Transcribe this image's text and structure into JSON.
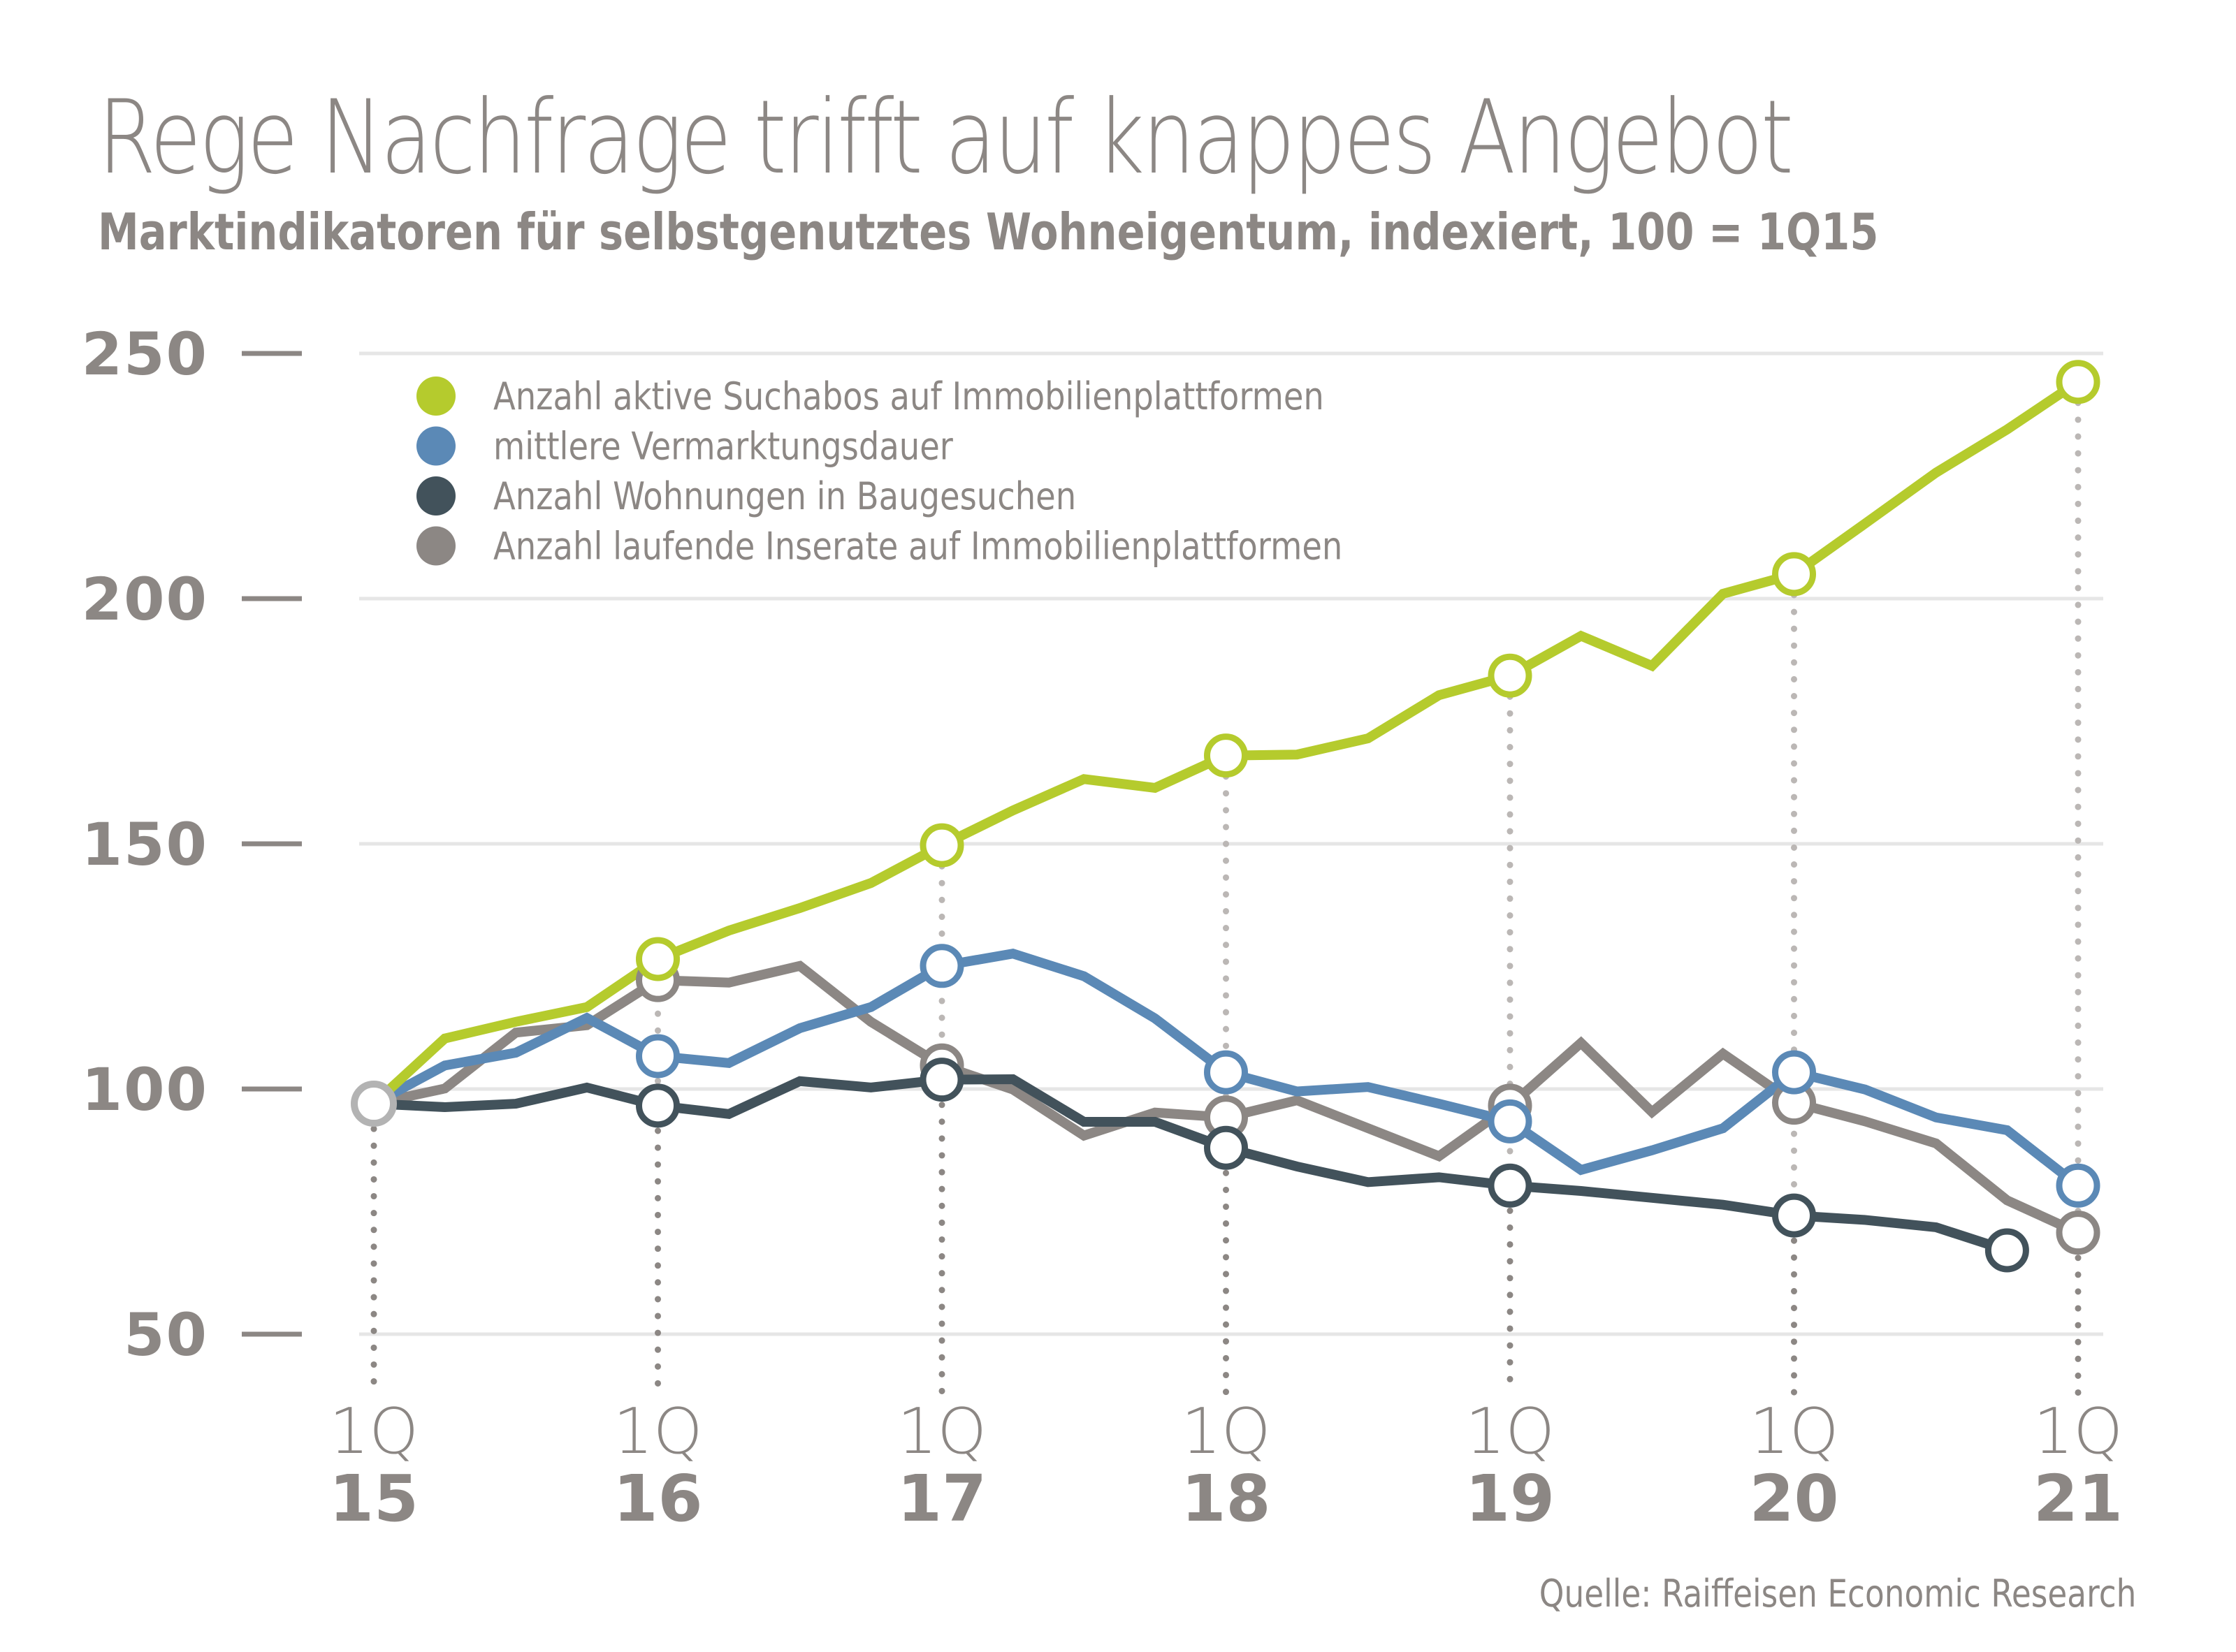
{
  "title": "Rege Nachfrage trifft auf knappes Angebot",
  "subtitle": "Marktindikatoren für selbstgenutztes Wohneigentum, indexiert, 100 = 1Q15",
  "source": "Quelle: Raiffeisen Economic Research",
  "colors": {
    "text": "#8c8784",
    "grid": "#e6e6e6",
    "start_marker": "#b3b3b3",
    "dots_light": "#bbb7b5",
    "dots_dark": "#8c8784"
  },
  "chart_data": {
    "type": "line",
    "title": "Rege Nachfrage trifft auf knappes Angebot",
    "subtitle": "Marktindikatoren für selbstgenutztes Wohneigentum, indexiert, 100 = 1Q15",
    "xlabel": "",
    "ylabel": "",
    "ylim": [
      50,
      250
    ],
    "yticks": [
      50,
      100,
      150,
      200,
      250
    ],
    "grid": true,
    "legend_position": "top-left",
    "x": [
      "1Q15",
      "2Q15",
      "3Q15",
      "4Q15",
      "1Q16",
      "2Q16",
      "3Q16",
      "4Q16",
      "1Q17",
      "2Q17",
      "3Q17",
      "4Q17",
      "1Q18",
      "2Q18",
      "3Q18",
      "4Q18",
      "1Q19",
      "2Q19",
      "3Q19",
      "4Q19",
      "1Q20",
      "2Q20",
      "3Q20",
      "4Q20",
      "1Q21"
    ],
    "xticks": [
      {
        "index": 0,
        "quarter": "1Q",
        "year": "15"
      },
      {
        "index": 4,
        "quarter": "1Q",
        "year": "16"
      },
      {
        "index": 8,
        "quarter": "1Q",
        "year": "17"
      },
      {
        "index": 12,
        "quarter": "1Q",
        "year": "18"
      },
      {
        "index": 16,
        "quarter": "1Q",
        "year": "19"
      },
      {
        "index": 20,
        "quarter": "1Q",
        "year": "20"
      },
      {
        "index": 24,
        "quarter": "1Q",
        "year": "21"
      }
    ],
    "series": [
      {
        "name": "Anzahl aktive Suchabos auf Immobilienplattformen",
        "color": "#b5cb2d",
        "values": [
          97,
          110.3,
          113.7,
          116.7,
          126.5,
          132.3,
          136.9,
          142,
          149.7,
          156.8,
          163.2,
          161.4,
          168,
          168.2,
          171.5,
          180.3,
          184.3,
          192.4,
          186.3,
          201,
          205,
          215.3,
          225.7,
          234.5,
          244.2
        ]
      },
      {
        "name": "mittlere Vermarktungsdauer",
        "color": "#5b89b6",
        "values": [
          97,
          104.8,
          107.4,
          114.5,
          106.7,
          105.3,
          112.4,
          116.7,
          125.1,
          127.6,
          123,
          114.4,
          103.4,
          99.5,
          100.4,
          97,
          93.4,
          83.5,
          87.5,
          92,
          103.4,
          99.9,
          94.2,
          91.6,
          80.3
        ]
      },
      {
        "name": "Anzahl Wohnungen in Baugesuchen",
        "color": "#42525b",
        "values": [
          97,
          96.3,
          97,
          100.3,
          96.6,
          94.9,
          101.6,
          100.3,
          101.9,
          102,
          93.3,
          93.3,
          88,
          84.2,
          81,
          82,
          80.3,
          79.2,
          77.8,
          76.4,
          74.2,
          73.3,
          71.8,
          67.1,
          null
        ]
      },
      {
        "name": "Anzahl laufende Inserate auf Immobilienplattformen",
        "color": "#8c8784",
        "values": [
          97,
          100.1,
          111.5,
          113,
          122.2,
          121.7,
          125.1,
          113.7,
          104.8,
          99.9,
          90.5,
          95.2,
          94.2,
          97.7,
          92,
          86.3,
          96.6,
          109.4,
          95.3,
          107.2,
          97.2,
          93.4,
          88.9,
          77.3,
          70.7
        ]
      }
    ],
    "year_markers_at": [
      0,
      4,
      8,
      12,
      16,
      20,
      24
    ],
    "extra_marker_indices": {
      "Anzahl Wohnungen in Baugesuchen": [
        23
      ]
    }
  }
}
